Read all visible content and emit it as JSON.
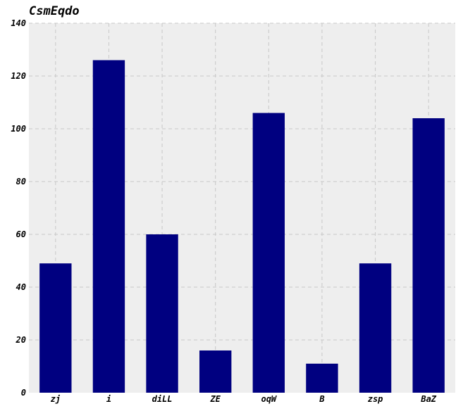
{
  "chart_data": {
    "type": "bar",
    "title": "CsmEqdo",
    "xlabel": "",
    "ylabel": "",
    "categories": [
      "zj",
      "i",
      "diLL",
      "ZE",
      "oqW",
      "B",
      "zsp",
      "BaZ"
    ],
    "values": [
      49,
      126,
      60,
      16,
      106,
      11,
      49,
      104
    ],
    "ylim": [
      0,
      140
    ],
    "yticks": [
      0,
      20,
      40,
      60,
      80,
      100,
      120,
      140
    ],
    "grid": true,
    "legend": "none"
  },
  "colors": {
    "bar": "#000080",
    "plot_background": "#eeeeee",
    "grid": "#c8c8c8"
  }
}
